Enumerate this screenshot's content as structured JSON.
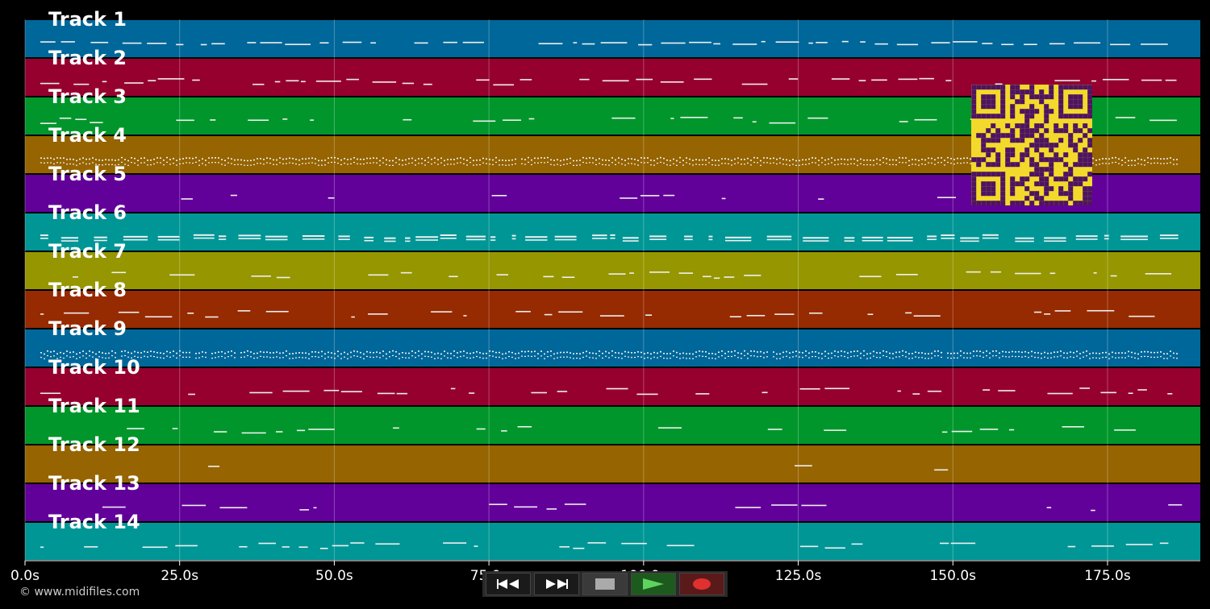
{
  "tracks": [
    {
      "label": "Track 1",
      "color": "#00679a",
      "density": 0.95,
      "style": "line"
    },
    {
      "label": "Track 2",
      "color": "#96002f",
      "density": 0.75,
      "style": "dash"
    },
    {
      "label": "Track 3",
      "color": "#00962b",
      "density": 0.6,
      "style": "dash"
    },
    {
      "label": "Track 4",
      "color": "#966400",
      "density": 0.98,
      "style": "dotted"
    },
    {
      "label": "Track 5",
      "color": "#62009a",
      "density": 0.35,
      "style": "dash"
    },
    {
      "label": "Track 6",
      "color": "#009696",
      "density": 0.98,
      "style": "double"
    },
    {
      "label": "Track 7",
      "color": "#969600",
      "density": 0.55,
      "style": "dash"
    },
    {
      "label": "Track 8",
      "color": "#962a00",
      "density": 0.55,
      "style": "dash"
    },
    {
      "label": "Track 9",
      "color": "#00679a",
      "density": 0.98,
      "style": "dotted"
    },
    {
      "label": "Track 10",
      "color": "#96002f",
      "density": 0.55,
      "style": "dash"
    },
    {
      "label": "Track 11",
      "color": "#00962b",
      "density": 0.55,
      "style": "dash"
    },
    {
      "label": "Track 12",
      "color": "#966400",
      "density": 0.05,
      "style": "dash"
    },
    {
      "label": "Track 13",
      "color": "#62009a",
      "density": 0.5,
      "style": "dash"
    },
    {
      "label": "Track 14",
      "color": "#009696",
      "density": 0.6,
      "style": "dash"
    }
  ],
  "axis": {
    "max_seconds": 190,
    "ticks": [
      {
        "value": 0,
        "label": "0.0s"
      },
      {
        "value": 25,
        "label": "25.0s"
      },
      {
        "value": 50,
        "label": "50.0s"
      },
      {
        "value": 75,
        "label": "75.0s"
      },
      {
        "value": 100,
        "label": "100.0s"
      },
      {
        "value": 125,
        "label": "125.0s"
      },
      {
        "value": 150,
        "label": "150.0s"
      },
      {
        "value": 175,
        "label": "175.0s"
      }
    ]
  },
  "copyright": "© www.midifiles.com",
  "transport": {
    "buttons": [
      {
        "name": "rewind-button",
        "icon": "rewind-icon"
      },
      {
        "name": "fast-forward-button",
        "icon": "fast-forward-icon"
      },
      {
        "name": "stop-button",
        "icon": "stop-icon"
      },
      {
        "name": "play-button",
        "icon": "play-icon"
      },
      {
        "name": "record-button",
        "icon": "record-icon"
      }
    ]
  },
  "qr": {
    "color": "#f3d92b",
    "dark": "#4e1460"
  }
}
